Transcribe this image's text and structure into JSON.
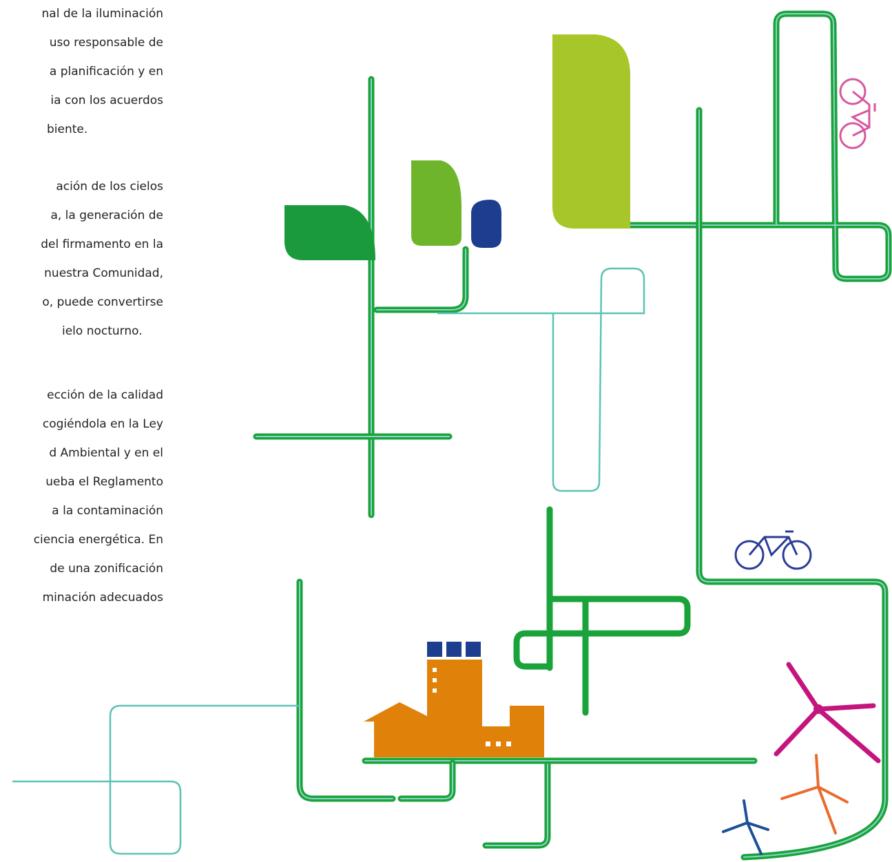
{
  "paragraphs": [
    {
      "lines": [
        "nal de la iluminación",
        "uso responsable de",
        "a planificación y en",
        "ia con los acuerdos",
        "biente."
      ]
    },
    {
      "lines": [
        "ación de los cielos",
        "a, la generación de",
        "del firmamento en la",
        "nuestra Comunidad,",
        "o, puede convertirse",
        "ielo nocturno."
      ]
    },
    {
      "lines": [
        "ección de la calidad",
        "cogiéndola en la Ley",
        "d Ambiental y en el",
        "ueba el Reglamento",
        "a la contaminación",
        "ciencia energética. En",
        "de una zonificación",
        "minación adecuados"
      ]
    }
  ]
}
